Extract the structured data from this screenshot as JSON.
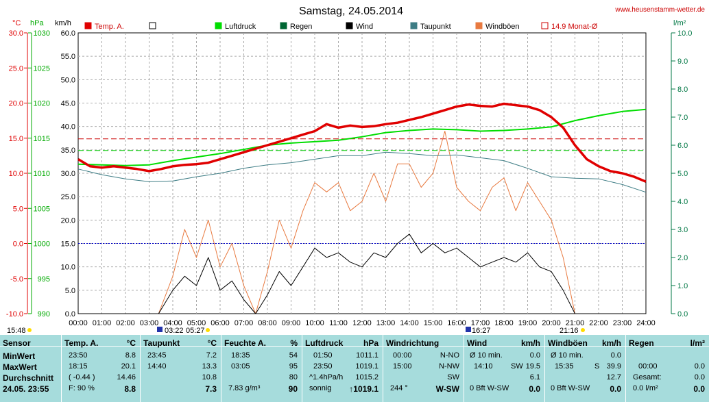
{
  "header": {
    "title": "Samstag, 24.05.2014",
    "site": "www.heusenstamm-wetter.de",
    "unit_temp": "°C",
    "unit_press": "hPa",
    "unit_wind": "km/h",
    "unit_rain": "l/m²"
  },
  "legend": [
    {
      "label": "Temp. A.",
      "color": "#e00000",
      "style": "filled"
    },
    {
      "label": "",
      "color": "#000000",
      "style": "open"
    },
    {
      "label": "Luftdruck",
      "color": "#00dd00",
      "style": "filled"
    },
    {
      "label": "Regen",
      "color": "#006633",
      "style": "filled"
    },
    {
      "label": "Wind",
      "color": "#000000",
      "style": "filled"
    },
    {
      "label": "Taupunkt",
      "color": "#3e7d85",
      "style": "filled"
    },
    {
      "label": "Windböen",
      "color": "#e87a40",
      "style": "filled"
    },
    {
      "label": "14.9 Monat-Ø",
      "color": "#cc0000",
      "style": "open"
    }
  ],
  "chart_data": {
    "type": "line",
    "x_ticks": [
      "00:00",
      "01:00",
      "02:00",
      "03:00",
      "04:00",
      "05:00",
      "06:00",
      "07:00",
      "08:00",
      "09:00",
      "10:00",
      "11:00",
      "12:00",
      "13:00",
      "14:00",
      "15:00",
      "16:00",
      "17:00",
      "18:00",
      "19:00",
      "20:00",
      "21:00",
      "22:00",
      "23:00",
      "24:00"
    ],
    "temp_axis_ticks": [
      "30.0",
      "25.0",
      "20.0",
      "15.0",
      "10.0",
      "5.0",
      "0.0",
      "-5.0",
      "-10.0"
    ],
    "press_axis_ticks": [
      "1030",
      "1025",
      "1020",
      "1015",
      "1010",
      "1005",
      "1000",
      "995",
      "990"
    ],
    "wind_axis_ticks": [
      "60.0",
      "55.0",
      "50.0",
      "45.0",
      "40.0",
      "35.0",
      "30.0",
      "25.0",
      "20.0",
      "15.0",
      "10.0",
      "5.0",
      "0.0"
    ],
    "rain_axis_ticks": [
      "10.0",
      "9.0",
      "8.0",
      "7.0",
      "6.0",
      "5.0",
      "4.0",
      "3.0",
      "2.0",
      "1.0",
      "0.0"
    ],
    "ylim_temp": [
      -10,
      30
    ],
    "ylim_press": [
      990,
      1030
    ],
    "ylim_wind": [
      0,
      60
    ],
    "ylim_rain": [
      0,
      10
    ],
    "month_avg_temp": 14.9,
    "series": [
      {
        "name": "Temp. A.",
        "color": "#e00000",
        "axis": "temp",
        "x": [
          0,
          0.5,
          1,
          1.5,
          2,
          2.5,
          3,
          3.5,
          4,
          4.5,
          5,
          5.5,
          6,
          6.5,
          7,
          7.5,
          8,
          8.5,
          9,
          9.5,
          10,
          10.5,
          11,
          11.5,
          12,
          12.5,
          13,
          13.5,
          14,
          14.5,
          15,
          15.5,
          16,
          16.5,
          17,
          17.5,
          18,
          18.5,
          19,
          19.5,
          20,
          20.5,
          21,
          21.5,
          22,
          22.5,
          23,
          23.5,
          24
        ],
        "values": [
          12.0,
          11.0,
          10.8,
          11.0,
          10.8,
          10.6,
          10.3,
          10.6,
          11.0,
          11.2,
          11.3,
          11.5,
          12.0,
          12.5,
          13.0,
          13.5,
          14.0,
          14.5,
          15.0,
          15.5,
          16.0,
          17.0,
          16.5,
          16.8,
          16.6,
          16.7,
          17.0,
          17.2,
          17.6,
          18.0,
          18.5,
          19.0,
          19.5,
          19.8,
          19.6,
          19.5,
          19.9,
          19.7,
          19.5,
          19.0,
          18.0,
          16.5,
          14.0,
          12.0,
          11.0,
          10.3,
          10.0,
          9.5,
          8.8
        ]
      },
      {
        "name": "Luftdruck",
        "color": "#00dd00",
        "axis": "press",
        "x": [
          0,
          1,
          2,
          3,
          4,
          5,
          6,
          7,
          8,
          9,
          10,
          11,
          12,
          13,
          14,
          15,
          16,
          17,
          18,
          19,
          20,
          21,
          22,
          23,
          24
        ],
        "values": [
          1011.3,
          1011.2,
          1011.1,
          1011.2,
          1011.8,
          1012.3,
          1012.8,
          1013.4,
          1014.0,
          1014.3,
          1014.5,
          1014.7,
          1015.2,
          1015.8,
          1016.1,
          1016.3,
          1016.2,
          1016.0,
          1016.1,
          1016.3,
          1016.6,
          1017.5,
          1018.2,
          1018.8,
          1019.1
        ]
      },
      {
        "name": "Taupunkt",
        "color": "#3e7d85",
        "axis": "temp",
        "x": [
          0,
          1,
          2,
          3,
          4,
          5,
          6,
          7,
          8,
          9,
          10,
          11,
          12,
          13,
          14,
          15,
          16,
          17,
          18,
          19,
          20,
          21,
          22,
          23,
          24
        ],
        "values": [
          10.6,
          9.8,
          9.2,
          8.8,
          8.9,
          9.5,
          10.0,
          10.7,
          11.2,
          11.5,
          12.0,
          12.5,
          12.5,
          13.0,
          12.8,
          12.5,
          12.6,
          12.2,
          11.8,
          10.7,
          9.5,
          9.3,
          9.2,
          8.4,
          7.3
        ]
      },
      {
        "name": "Wind",
        "color": "#000000",
        "axis": "wind",
        "x": [
          0,
          1,
          2,
          3,
          3.4,
          4,
          4.5,
          5,
          5.5,
          6,
          6.5,
          7,
          7.5,
          8,
          8.5,
          9,
          9.5,
          10,
          10.5,
          11,
          11.5,
          12,
          12.5,
          13,
          13.5,
          14,
          14.5,
          15,
          15.5,
          16,
          16.5,
          17,
          17.5,
          18,
          18.5,
          19,
          19.5,
          20,
          20.5,
          21,
          22,
          23,
          24
        ],
        "values": [
          0,
          0,
          0,
          0,
          0,
          5,
          8,
          6,
          12,
          5,
          7,
          3,
          0,
          4,
          9,
          6,
          10,
          14,
          12,
          13,
          11,
          10,
          13,
          12,
          15,
          17,
          13,
          15,
          13,
          14,
          12,
          10,
          11,
          12,
          11,
          13,
          10,
          9,
          5,
          0,
          0,
          0,
          0
        ]
      },
      {
        "name": "Windböen",
        "color": "#e87a40",
        "axis": "wind",
        "x": [
          0,
          1,
          2,
          3,
          3.4,
          4,
          4.5,
          5,
          5.5,
          6,
          6.5,
          7,
          7.5,
          8,
          8.5,
          9,
          9.5,
          10,
          10.5,
          11,
          11.5,
          12,
          12.5,
          13,
          13.5,
          14,
          14.5,
          15,
          15.5,
          16,
          16.5,
          17,
          17.5,
          18,
          18.5,
          19,
          19.5,
          20,
          20.5,
          21,
          22,
          23,
          24
        ],
        "values": [
          0,
          0,
          0,
          0,
          0,
          8,
          18,
          12,
          20,
          10,
          15,
          6,
          0,
          9,
          20,
          14,
          22,
          28,
          26,
          28,
          22,
          24,
          30,
          24,
          32,
          32,
          27,
          30,
          39,
          27,
          24,
          22,
          27,
          29,
          22,
          28,
          24,
          20,
          12,
          0,
          0,
          0,
          0
        ]
      }
    ]
  },
  "marks": {
    "sunrise_label": "15:48",
    "moon_label_1": "03:22",
    "sun_label_1": "05:27",
    "moon_label_2": "16:27",
    "sun_label_2": "21:16"
  },
  "table": {
    "row_labels": {
      "sensor": "Sensor",
      "min": "MinWert",
      "max": "MaxWert",
      "avg": "Durchschnitt",
      "date": "24.05. 23:55"
    },
    "temp": {
      "header": "Temp. A.",
      "unit": "°C",
      "min_time": "23:50",
      "min_val": "8.8",
      "max_time": "18:15",
      "max_val": "20.1",
      "avg_note": "( -0.44 )",
      "avg_val": "14.46",
      "cur_note": "F: 90 %",
      "cur_val": "8.8"
    },
    "dew": {
      "header": "Taupunkt",
      "unit": "°C",
      "min_time": "23:45",
      "min_val": "7.2",
      "max_time": "14:40",
      "max_val": "13.3",
      "avg_val": "10.8",
      "cur_val": "7.3"
    },
    "hum": {
      "header": "Feuchte A.",
      "unit": "%",
      "min_time": "18:35",
      "min_val": "54",
      "max_time": "03:05",
      "max_val": "95",
      "avg_val": "80",
      "cur_note": "7.83 g/m³",
      "cur_val": "90"
    },
    "press": {
      "header": "Luftdruck",
      "unit": "hPa",
      "min_time": "01:50",
      "min_val": "1011.1",
      "max_time": "23:50",
      "max_val": "1019.1",
      "avg_note": "^1.4hPa/h",
      "avg_val": "1015.2",
      "cur_note": "sonnig",
      "cur_val": "↑1019.1"
    },
    "dir": {
      "header": "Windrichtung",
      "min_time": "00:00",
      "min_val": "N-NO",
      "max_time": "15:00",
      "max_val": "N-NW",
      "avg_val": "SW",
      "cur_note": "244 °",
      "cur_val": "W-SW"
    },
    "wind": {
      "header": "Wind",
      "unit": "km/h",
      "min_time": "Ø 10 min.",
      "min_val": "0.0",
      "max_time": "14:10",
      "max_mid": "SW",
      "max_val": "19.5",
      "avg_val": "6.1",
      "cur_note": "0 Bft W-SW",
      "cur_val": "0.0"
    },
    "gust": {
      "header": "Windböen",
      "unit": "km/h",
      "min_time": "Ø 10 min.",
      "min_val": "0.0",
      "max_time": "15:35",
      "max_mid": "S",
      "max_val": "39.9",
      "avg_val": "12.7",
      "cur_note": "0 Bft W-SW",
      "cur_val": "0.0"
    },
    "rain": {
      "header": "Regen",
      "unit": "l/m²",
      "max_time": "00:00",
      "max_val": "0.0",
      "avg_note": "Gesamt:",
      "avg_val": "0.0",
      "cur_note": "0.0 l/m²",
      "cur_val": "0.0"
    }
  }
}
